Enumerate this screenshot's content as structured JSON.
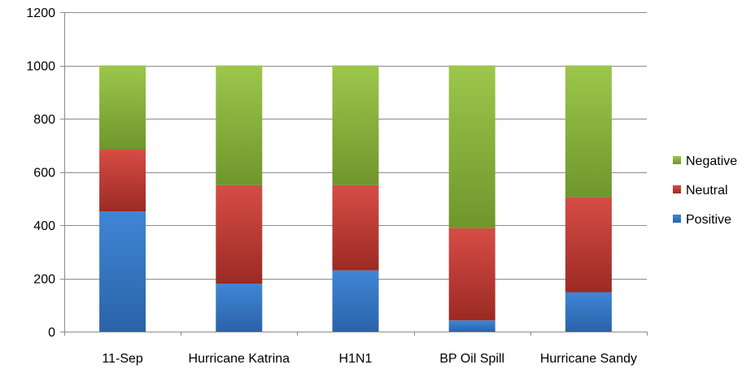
{
  "chart_data": {
    "type": "bar",
    "stacked": true,
    "categories": [
      "11-Sep",
      "Hurricane Katrina",
      "H1N1",
      "BP Oil Spill",
      "Hurricane Sandy"
    ],
    "series": [
      {
        "name": "Positive",
        "color": "#3a78c3",
        "values": [
          452,
          180,
          230,
          42,
          148
        ]
      },
      {
        "name": "Neutral",
        "color": "#c9403a",
        "values": [
          232,
          370,
          320,
          346,
          357
        ]
      },
      {
        "name": "Negative",
        "color": "#8cb43f",
        "values": [
          316,
          450,
          450,
          612,
          495
        ]
      }
    ],
    "ylim": [
      0,
      1200
    ],
    "yticks": [
      0,
      200,
      400,
      600,
      800,
      1000,
      1200
    ],
    "grid": true,
    "legend": "right",
    "legend_order": [
      "Negative",
      "Neutral",
      "Positive"
    ]
  }
}
